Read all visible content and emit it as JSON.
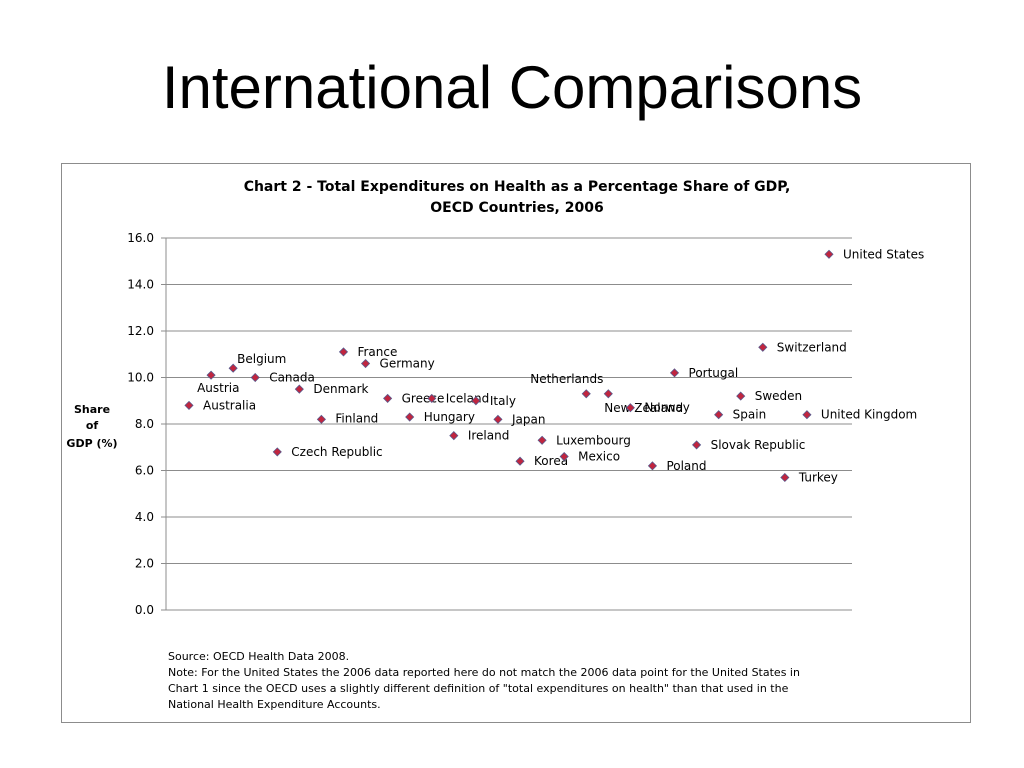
{
  "slide": {
    "title": "International Comparisons"
  },
  "chart_data": {
    "type": "scatter",
    "title": "Chart 2 - Total Expenditures on Health as a Percentage Share of GDP,",
    "subtitle": "OECD Countries, 2006",
    "xlabel": "",
    "ylabel_lines": [
      "Share",
      "of",
      "GDP (%)"
    ],
    "ylim": [
      0,
      16
    ],
    "yticks": [
      "0.0",
      "2.0",
      "4.0",
      "6.0",
      "8.0",
      "10.0",
      "12.0",
      "14.0",
      "16.0"
    ],
    "grid": true,
    "legend": "none",
    "marker_color": "#c0253f",
    "marker_outline": "#5a5a8c",
    "points": [
      {
        "label": "Australia",
        "value": 8.8
      },
      {
        "label": "Austria",
        "value": 10.1
      },
      {
        "label": "Belgium",
        "value": 10.4
      },
      {
        "label": "Canada",
        "value": 10.0
      },
      {
        "label": "Czech Republic",
        "value": 6.8
      },
      {
        "label": "Denmark",
        "value": 9.5
      },
      {
        "label": "Finland",
        "value": 8.2
      },
      {
        "label": "France",
        "value": 11.1
      },
      {
        "label": "Germany",
        "value": 10.6
      },
      {
        "label": "Greece",
        "value": 9.1
      },
      {
        "label": "Hungary",
        "value": 8.3
      },
      {
        "label": "Iceland",
        "value": 9.1
      },
      {
        "label": "Ireland",
        "value": 7.5
      },
      {
        "label": "Italy",
        "value": 9.0
      },
      {
        "label": "Japan",
        "value": 8.2
      },
      {
        "label": "Korea",
        "value": 6.4
      },
      {
        "label": "Luxembourg",
        "value": 7.3
      },
      {
        "label": "Mexico",
        "value": 6.6
      },
      {
        "label": "Netherlands",
        "value": 9.3
      },
      {
        "label": "New Zealand",
        "value": 9.3
      },
      {
        "label": "Norway",
        "value": 8.7
      },
      {
        "label": "Poland",
        "value": 6.2
      },
      {
        "label": "Portugal",
        "value": 10.2
      },
      {
        "label": "Slovak Republic",
        "value": 7.1
      },
      {
        "label": "Spain",
        "value": 8.4
      },
      {
        "label": "Sweden",
        "value": 9.2
      },
      {
        "label": "Switzerland",
        "value": 11.3
      },
      {
        "label": "Turkey",
        "value": 5.7
      },
      {
        "label": "United Kingdom",
        "value": 8.4
      },
      {
        "label": "United States",
        "value": 15.3
      }
    ],
    "notes": [
      "Source: OECD Health Data 2008.",
      "Note: For the United States the 2006 data reported here do not match the 2006 data point for the United States in",
      "Chart 1 since the OECD uses a slightly different definition of \"total expenditures on health\" than that used in the",
      "National Health Expenditure Accounts."
    ]
  }
}
